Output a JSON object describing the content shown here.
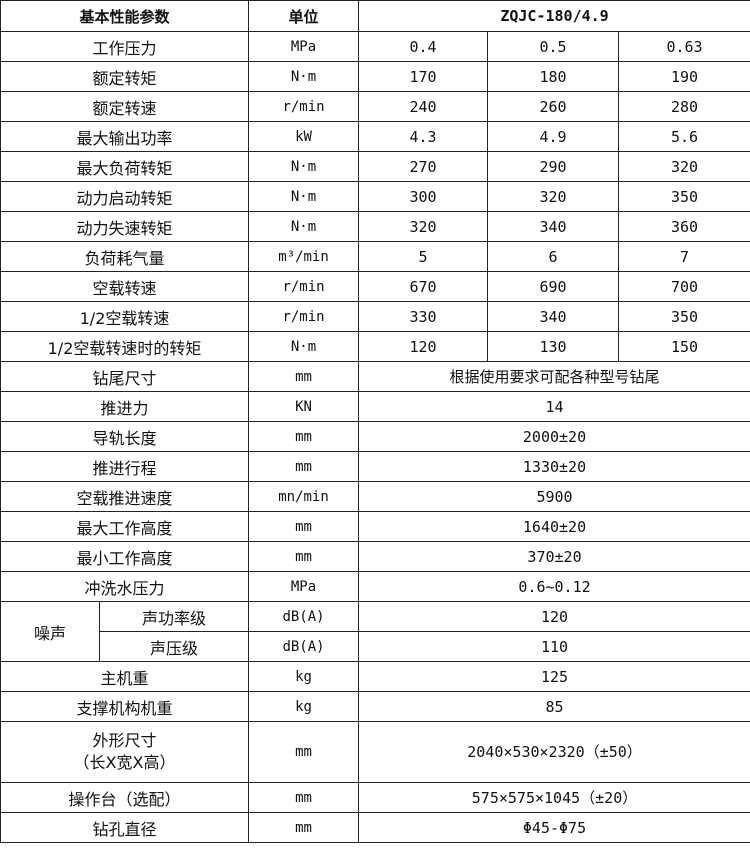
{
  "header": {
    "param": "基本性能参数",
    "unit": "单位",
    "model": "ZQJC-180/4.9"
  },
  "rows3": [
    {
      "name": "工作压力",
      "unit": "MPa",
      "values": [
        "0.4",
        "0.5",
        "0.63"
      ]
    },
    {
      "name": "额定转矩",
      "unit": "N·m",
      "values": [
        "170",
        "180",
        "190"
      ]
    },
    {
      "name": "额定转速",
      "unit": "r/min",
      "values": [
        "240",
        "260",
        "280"
      ]
    },
    {
      "name": "最大输出功率",
      "unit": "kW",
      "values": [
        "4.3",
        "4.9",
        "5.6"
      ]
    },
    {
      "name": "最大负荷转矩",
      "unit": "N·m",
      "values": [
        "270",
        "290",
        "320"
      ]
    },
    {
      "name": "动力启动转矩",
      "unit": "N·m",
      "values": [
        "300",
        "320",
        "350"
      ]
    },
    {
      "name": "动力失速转矩",
      "unit": "N·m",
      "values": [
        "320",
        "340",
        "360"
      ]
    },
    {
      "name": "负荷耗气量",
      "unit": "m³/min",
      "values": [
        "5",
        "6",
        "7"
      ]
    },
    {
      "name": "空载转速",
      "unit": "r/min",
      "values": [
        "670",
        "690",
        "700"
      ]
    },
    {
      "name": "1/2空载转速",
      "unit": "r/min",
      "values": [
        "330",
        "340",
        "350"
      ]
    },
    {
      "name": "1/2空载转速时的转矩",
      "unit": "N·m",
      "values": [
        "120",
        "130",
        "150"
      ]
    }
  ],
  "rows1a": [
    {
      "name": "钻尾尺寸",
      "unit": "mm",
      "value": "根据使用要求可配各种型号钻尾"
    },
    {
      "name": "推进力",
      "unit": "KN",
      "value": "14"
    },
    {
      "name": "导轨长度",
      "unit": "mm",
      "value": "2000±20"
    },
    {
      "name": "推进行程",
      "unit": "mm",
      "value": "1330±20"
    },
    {
      "name": "空载推进速度",
      "unit": "mn/min",
      "value": "5900"
    },
    {
      "name": "最大工作高度",
      "unit": "mm",
      "value": "1640±20"
    },
    {
      "name": "最小工作高度",
      "unit": "mm",
      "value": "370±20"
    },
    {
      "name": "冲洗水压力",
      "unit": "MPa",
      "value": "0.6~0.12"
    }
  ],
  "noise": {
    "label": "噪声",
    "rows": [
      {
        "name": "声功率级",
        "unit": "dB(A)",
        "value": "120"
      },
      {
        "name": "声压级",
        "unit": "dB(A)",
        "value": "110"
      }
    ]
  },
  "rows1b": [
    {
      "name": "主机重",
      "unit": "kg",
      "value": "125"
    },
    {
      "name": "支撑机构机重",
      "unit": "kg",
      "value": "85"
    },
    {
      "name": "外形尺寸\n（长X宽X高）",
      "unit": "mm",
      "value": "2040×530×2320（±50）",
      "tall": true
    },
    {
      "name": "操作台（选配）",
      "unit": "mm",
      "value": "575×575×1045（±20）"
    },
    {
      "name": "钻孔直径",
      "unit": "mm",
      "value": "Φ45-Φ75"
    }
  ]
}
